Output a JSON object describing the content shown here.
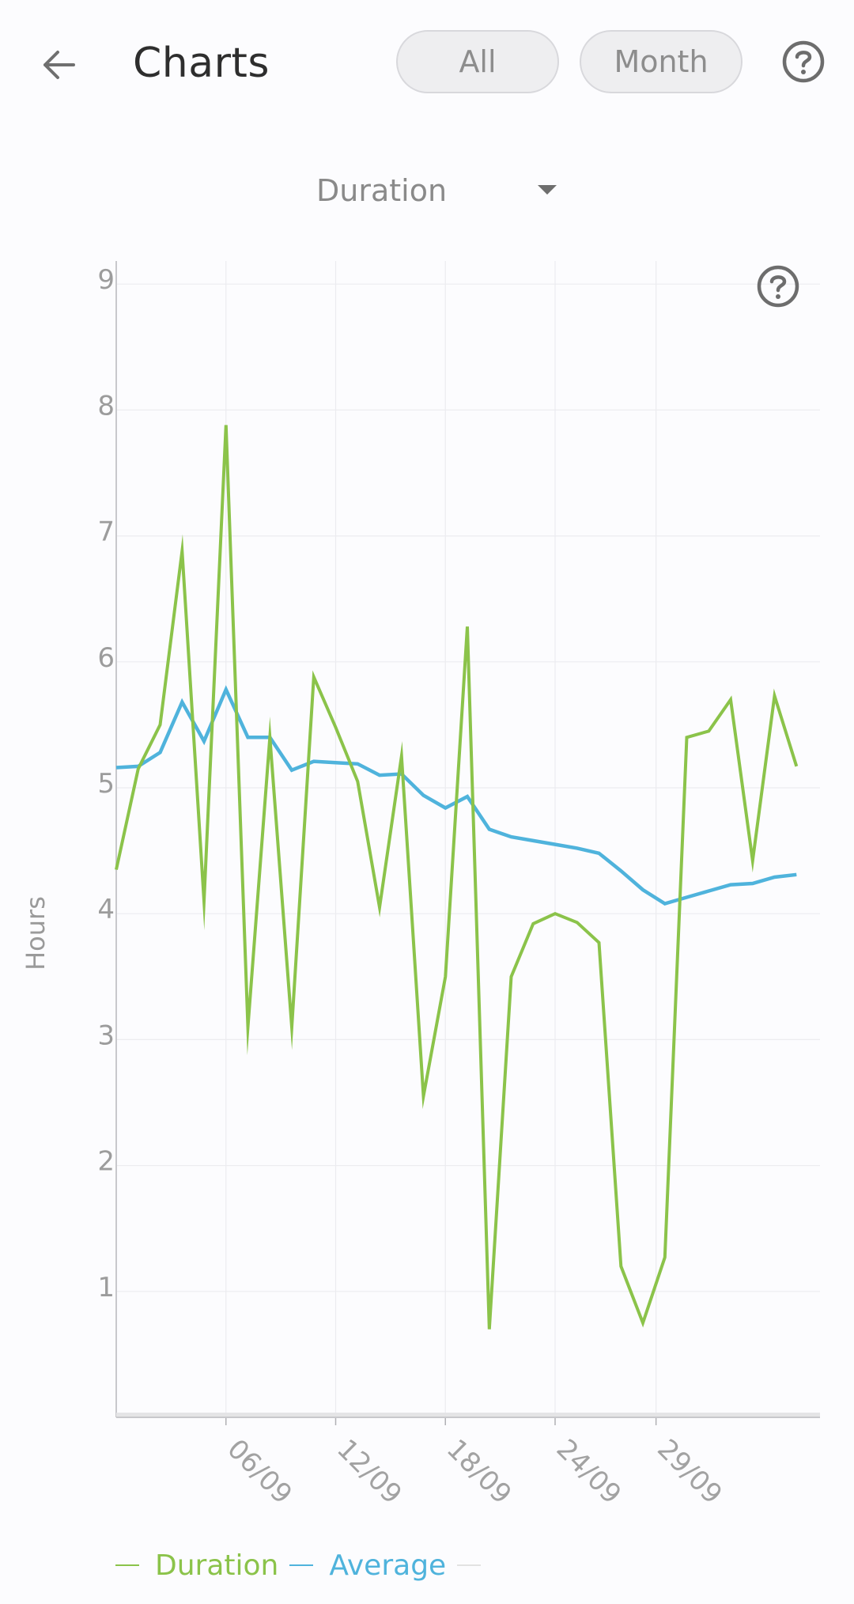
{
  "header": {
    "title": "Charts",
    "filter_all": "All",
    "filter_month": "Month"
  },
  "metric_selector": {
    "value": "Duration"
  },
  "colors": {
    "duration": "#8bc34a",
    "average": "#4fb3dc",
    "grid": "#ececf0",
    "axis": "#c8c8cc"
  },
  "icons": {
    "back": "arrow-left-icon",
    "help": "question-circle-icon",
    "dropdown": "caret-down-icon"
  },
  "chart_data": {
    "type": "line",
    "ylabel": "Hours",
    "ylim": [
      0,
      9
    ],
    "y_ticks": [
      "1",
      "2",
      "3",
      "4",
      "5",
      "6",
      "7",
      "8",
      "9"
    ],
    "x_ticks": [
      "06/09",
      "12/09",
      "18/09",
      "24/09",
      "29/09"
    ],
    "grid": true,
    "legend_position": "bottom-left",
    "x_days": [
      0,
      1,
      2,
      3,
      4,
      5,
      6,
      7,
      8,
      9,
      10,
      11,
      12,
      13,
      14,
      15,
      16,
      17,
      18,
      19,
      20,
      21,
      22,
      23,
      24,
      25,
      26,
      27,
      28,
      29,
      30,
      31
    ],
    "series": [
      {
        "name": "Duration",
        "values": [
          4.35,
          5.15,
          5.5,
          6.88,
          4.1,
          7.88,
          3.1,
          5.4,
          3.1,
          5.88,
          5.48,
          5.05,
          4.05,
          5.25,
          2.55,
          3.5,
          6.28,
          0.7,
          3.5,
          3.92,
          4.0,
          3.93,
          3.77,
          1.2,
          0.75,
          1.27,
          5.4,
          5.45,
          5.7,
          4.42,
          5.73,
          5.17
        ]
      },
      {
        "name": "Average",
        "values": [
          5.16,
          5.17,
          5.28,
          5.68,
          5.37,
          5.78,
          5.4,
          5.4,
          5.14,
          5.21,
          5.2,
          5.19,
          5.1,
          5.11,
          4.94,
          4.84,
          4.93,
          4.67,
          4.61,
          4.58,
          4.55,
          4.52,
          4.48,
          4.34,
          4.19,
          4.08,
          4.13,
          4.18,
          4.23,
          4.24,
          4.29,
          4.31
        ]
      }
    ]
  }
}
